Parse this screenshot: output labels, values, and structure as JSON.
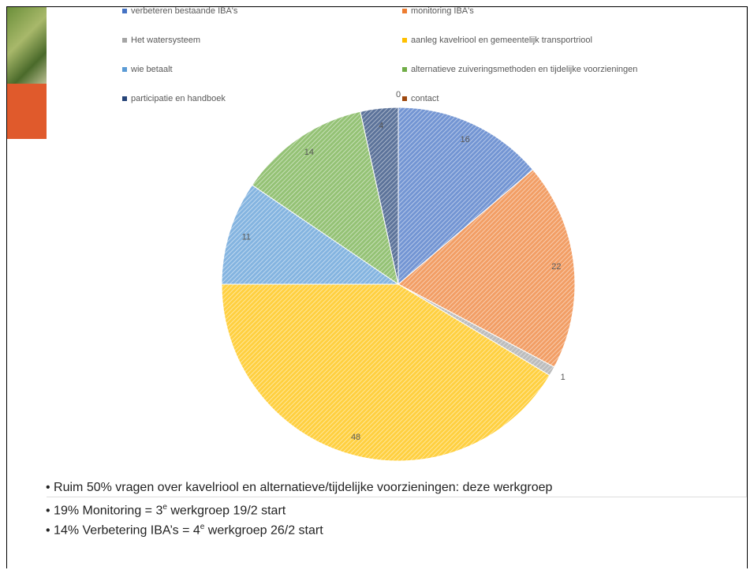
{
  "chart_data": {
    "type": "pie",
    "categories": [
      "verbeteren bestaande IBA's",
      "monitoring IBA's",
      "Het watersysteem",
      "aanleg kavelriool en gemeentelijk transportriool",
      "wie betaalt",
      "alternatieve zuiveringsmethoden en tijdelijke voorzieningen",
      "participatie en handboek",
      "contact"
    ],
    "values": [
      16,
      22,
      1,
      48,
      11,
      14,
      4,
      0
    ],
    "colors": [
      "#4472c4",
      "#ed7d31",
      "#a5a5a5",
      "#ffc000",
      "#5b9bd5",
      "#70ad47",
      "#264478",
      "#9e480e"
    ]
  },
  "bullets": [
    {
      "text": "Ruim 50% vragen over kavelriool en alternatieve/tijdelijke voorzieningen: deze werkgroep"
    },
    {
      "text": "19% Monitoring  = 3",
      "sup": "e",
      "after": " werkgroep 19/2 start"
    },
    {
      "text": "14% Verbetering IBA’s = 4",
      "sup": "e",
      "after": " werkgroep 26/2 start"
    }
  ]
}
